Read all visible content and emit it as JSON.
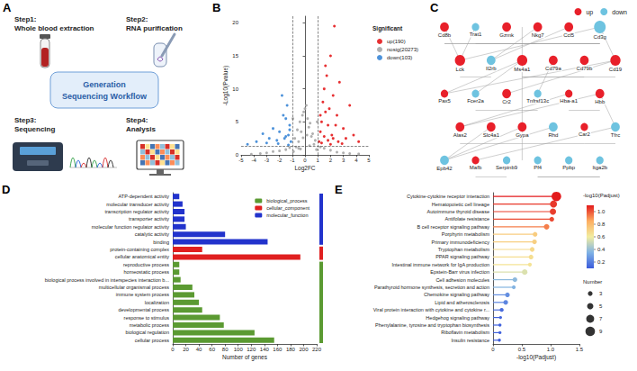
{
  "workflow": {
    "panel": "A",
    "title": "Generation Sequencing Workflow",
    "steps": [
      {
        "step": "Step1:",
        "text": "Whole blood extraction"
      },
      {
        "step": "Step2:",
        "text": "RNA purification"
      },
      {
        "step": "Step3:",
        "text": "Sequencing"
      },
      {
        "step": "Step4:",
        "text": "Analysis"
      }
    ]
  },
  "network": {
    "panel": "C",
    "legend": [
      {
        "name": "up",
        "color": "#e8202a"
      },
      {
        "name": "down",
        "color": "#6ec3e0"
      }
    ],
    "nodes": [
      {
        "label": "Cd8b",
        "group": "up"
      },
      {
        "label": "Trat1",
        "group": "down"
      },
      {
        "label": "Gzmk",
        "group": "up"
      },
      {
        "label": "Nkg7",
        "group": "up"
      },
      {
        "label": "Ccl5",
        "group": "up"
      },
      {
        "label": "Cd3g",
        "group": "down"
      },
      {
        "label": "Lck",
        "group": "up"
      },
      {
        "label": "Il2rb",
        "group": "down"
      },
      {
        "label": "Ms4a1",
        "group": "up"
      },
      {
        "label": "Cd79a",
        "group": "up"
      },
      {
        "label": "Cd79b",
        "group": "up"
      },
      {
        "label": "Cd19",
        "group": "up"
      },
      {
        "label": "Pax5",
        "group": "up"
      },
      {
        "label": "Fcer2a",
        "group": "down"
      },
      {
        "label": "Cr2",
        "group": "up"
      },
      {
        "label": "Tnfrsf13c",
        "group": "down"
      },
      {
        "label": "Hba-a1",
        "group": "up"
      },
      {
        "label": "Hbb",
        "group": "up"
      },
      {
        "label": "Alas2",
        "group": "up"
      },
      {
        "label": "Slc4a1",
        "group": "up"
      },
      {
        "label": "Gypa",
        "group": "up"
      },
      {
        "label": "Rhd",
        "group": "down"
      },
      {
        "label": "Car2",
        "group": "up"
      },
      {
        "label": "Tfrc",
        "group": "down"
      },
      {
        "label": "Epb42",
        "group": "down"
      },
      {
        "label": "Mafb",
        "group": "up"
      },
      {
        "label": "Serpinb9",
        "group": "down"
      },
      {
        "label": "Pf4",
        "group": "down"
      },
      {
        "label": "Ppbp",
        "group": "down"
      },
      {
        "label": "Itga2b",
        "group": "down"
      }
    ],
    "links": [
      [
        "Cd8b",
        "Lck"
      ],
      [
        "Cd8b",
        "Cd3g"
      ],
      [
        "Cd8b",
        "Gzmk"
      ],
      [
        "Trat1",
        "Lck"
      ],
      [
        "Trat1",
        "Cd3g"
      ],
      [
        "Gzmk",
        "Nkg7"
      ],
      [
        "Nkg7",
        "Ccl5"
      ],
      [
        "Ccl5",
        "Cd3g"
      ],
      [
        "Cd3g",
        "Lck"
      ],
      [
        "Lck",
        "Il2rb"
      ],
      [
        "Il2rb",
        "Nkg7"
      ],
      [
        "Ms4a1",
        "Cd79a"
      ],
      [
        "Ms4a1",
        "Cd79b"
      ],
      [
        "Cd79a",
        "Cd79b"
      ],
      [
        "Cd79b",
        "Cd19"
      ],
      [
        "Cd19",
        "Pax5"
      ],
      [
        "Pax5",
        "Ms4a1"
      ],
      [
        "Fcer2a",
        "Cr2"
      ],
      [
        "Cr2",
        "Cd19"
      ],
      [
        "Tnfrsf13c",
        "Cd79a"
      ],
      [
        "Tnfrsf13c",
        "Cr2"
      ],
      [
        "Fcer2a",
        "Ms4a1"
      ],
      [
        "Hba-a1",
        "Hbb"
      ],
      [
        "Hbb",
        "Alas2"
      ],
      [
        "Alas2",
        "Slc4a1"
      ],
      [
        "Slc4a1",
        "Gypa"
      ],
      [
        "Gypa",
        "Rhd"
      ],
      [
        "Rhd",
        "Car2"
      ],
      [
        "Car2",
        "Tfrc"
      ],
      [
        "Tfrc",
        "Hbb"
      ],
      [
        "Epb42",
        "Slc4a1"
      ],
      [
        "Epb42",
        "Gypa"
      ],
      [
        "Hba-a1",
        "Alas2"
      ],
      [
        "Mafb",
        "Serpinb9"
      ],
      [
        "Serpinb9",
        "Gzmk"
      ],
      [
        "Pf4",
        "Ppbp"
      ],
      [
        "Ppbp",
        "Itga2b"
      ],
      [
        "Itga2b",
        "Pf4"
      ],
      [
        "Mafb",
        "Tfrc"
      ],
      [
        "Cd3g",
        "Cd19"
      ],
      [
        "Il2rb",
        "Ccl5"
      ],
      [
        "Rhd",
        "Epb42"
      ]
    ]
  },
  "chart_data": [
    {
      "panel": "B",
      "type": "scatter",
      "xlabel": "Log2FC",
      "ylabel": "-Log10(Pvalue)",
      "xlim": [
        -5,
        5
      ],
      "xticks": [
        -5,
        -4,
        -3,
        -2,
        -1,
        0,
        1,
        2,
        3,
        4,
        5
      ],
      "ylim": [
        0,
        21
      ],
      "yticks": [
        0,
        5,
        10,
        15,
        20
      ],
      "grid": false,
      "legend": "right",
      "legend_title": "Significant",
      "thresholds": {
        "x": [
          -1,
          1
        ],
        "y": 1.3
      },
      "series": [
        {
          "name": "up(190)",
          "color": "#e41a1c",
          "marker": "circle",
          "x": [
            1.1,
            1.2,
            1.3,
            1.4,
            1.5,
            1.6,
            1.7,
            1.8,
            1.9,
            2.0,
            2.1,
            2.2,
            2.3,
            2.5,
            2.7,
            3.0,
            3.2,
            3.5,
            3.8,
            4.2,
            1.3,
            1.5,
            1.8,
            2.0,
            2.4,
            2.6,
            1.2,
            1.6,
            2.2,
            2.9
          ],
          "values": [
            2.0,
            3.5,
            5.0,
            8.0,
            10.0,
            6.5,
            12.0,
            4.5,
            7.0,
            15.0,
            3.0,
            9.0,
            19.5,
            6.0,
            11.0,
            4.0,
            2.5,
            7.5,
            3.0,
            2.0,
            1.8,
            2.8,
            2.2,
            1.6,
            4.5,
            2.0,
            6.0,
            13.5,
            2.5,
            1.7
          ]
        },
        {
          "name": "nosig(20273)",
          "color": "#a6a6a6",
          "marker": "circle",
          "x": [
            -0.9,
            -0.7,
            -0.5,
            -0.3,
            -0.1,
            0.1,
            0.3,
            0.5,
            0.7,
            0.9,
            -0.8,
            -0.6,
            -0.4,
            -0.2,
            0,
            0.2,
            0.4,
            0.6,
            0.8,
            -0.5,
            -1.5,
            -2,
            -2.5,
            -3,
            1.5,
            2,
            2.5,
            3,
            -3.5,
            3.5,
            -4.2,
            4.2,
            -1.2,
            1.2,
            -0.95,
            0.95,
            0.15,
            -0.15,
            0.35,
            -0.35
          ],
          "values": [
            0.5,
            1.2,
            2.0,
            3.5,
            6.5,
            7.5,
            4.2,
            2.8,
            1.6,
            0.8,
            2.5,
            3.8,
            5.0,
            6.0,
            7.0,
            5.5,
            4.8,
            3.2,
            2.2,
            1.0,
            0.8,
            0.6,
            0.5,
            0.3,
            1.0,
            0.7,
            0.4,
            0.3,
            0.2,
            0.2,
            0.1,
            0.15,
            1.1,
            1.2,
            5.5,
            5.0,
            3.0,
            2.6,
            1.4,
            0.9
          ]
        },
        {
          "name": "down(103)",
          "color": "#3a86d6",
          "marker": "circle",
          "x": [
            -1.1,
            -1.2,
            -1.3,
            -1.4,
            -1.5,
            -1.6,
            -1.8,
            -2.0,
            -2.2,
            -2.5,
            -2.8,
            -3.0,
            -3.3,
            -3.8,
            -4.5,
            -1.3,
            -1.7,
            -2.1,
            -1.2,
            -1.5
          ],
          "values": [
            2.0,
            4.5,
            3.0,
            7.5,
            5.5,
            2.5,
            9.0,
            3.5,
            2.2,
            4.0,
            2.5,
            1.8,
            3.2,
            2.0,
            1.6,
            1.5,
            6.0,
            1.7,
            3.8,
            2.8
          ]
        }
      ]
    },
    {
      "panel": "D",
      "type": "bar",
      "orientation": "horizontal",
      "xlabel": "Number of genes",
      "xlim": [
        0,
        220
      ],
      "xticks": [
        0,
        20,
        40,
        60,
        80,
        100,
        120,
        140,
        160,
        180,
        200,
        220
      ],
      "grid": false,
      "legend": "upper right",
      "categories": [
        "ATP-dependent activity",
        "molecular transducer activity",
        "transcription regulator activity",
        "transporter activity",
        "molecular function regulator activity",
        "catalytic activity",
        "binding",
        "protein-containing complex",
        "cellular anatomical entity",
        "reproductive process",
        "homeostatic process",
        "biological process involved in interspecies interaction b...",
        "multicellular organismal process",
        "immune system process",
        "localization",
        "developmental process",
        "response to stimulus",
        "metabolic process",
        "biological regulation",
        "cellular process"
      ],
      "series": [
        {
          "name": "biological_process",
          "color": "#5b9a32",
          "values": [
            null,
            null,
            null,
            null,
            null,
            null,
            null,
            null,
            null,
            10,
            10,
            12,
            30,
            33,
            40,
            45,
            72,
            78,
            125,
            155
          ]
        },
        {
          "name": "cellular_component",
          "color": "#e02020",
          "values": [
            null,
            null,
            null,
            null,
            null,
            null,
            null,
            45,
            195,
            null,
            null,
            null,
            null,
            null,
            null,
            null,
            null,
            null,
            null,
            null
          ]
        },
        {
          "name": "molecular_function",
          "color": "#2233cc",
          "values": [
            10,
            15,
            18,
            18,
            20,
            80,
            145,
            null,
            null,
            null,
            null,
            null,
            null,
            null,
            null,
            null,
            null,
            null,
            null,
            null
          ]
        }
      ]
    },
    {
      "panel": "E",
      "type": "lollipop",
      "xlabel": "-log10(Padjust)",
      "xlim": [
        0,
        1.5
      ],
      "xticks": [
        0,
        0.5,
        {
          "value": 1,
          "label": "1.0"
        },
        1.5
      ],
      "grid": false,
      "categories": [
        "Cytokine-cytokine receptor interaction",
        "Hematopoietic cell lineage",
        "Autoimmune thyroid disease",
        "Antifolate resistance",
        "B cell receptor signaling pathway",
        "Porphyrin metabolism",
        "Primary immunodeficiency",
        "Tryptophan metabolism",
        "PPAR signaling pathway",
        "Intestinal immune network for IgA production",
        "Epstein-Barr virus infection",
        "Cell adhesion molecules",
        "Parathyroid hormone synthesis, secretion and action",
        "Chemokine signaling pathway",
        "Lipid and atherosclerosis",
        "Viral protein interaction with cytokine and cytokine r...",
        "Hedgehog signaling pathway",
        "Phenylalanine, tyrosine and tryptophan biosynthesis",
        "Riboflavin metabolism",
        "Insulin resistance"
      ],
      "values": [
        1.1,
        1.05,
        1.04,
        1.02,
        0.93,
        0.73,
        0.72,
        0.68,
        0.66,
        0.64,
        0.55,
        0.38,
        0.36,
        0.25,
        0.22,
        0.15,
        0.13,
        0.12,
        0.12,
        0.11
      ],
      "number": [
        9,
        6,
        5,
        3,
        4,
        3,
        3,
        3,
        3,
        2,
        4,
        3,
        2,
        3,
        3,
        2,
        1,
        1,
        1,
        1
      ],
      "colorbar": {
        "title": "-log10(Padjust)",
        "range": [
          0.1,
          1.1
        ],
        "ticks": [
          0.2,
          0.4,
          0.6,
          0.8,
          {
            "value": 1,
            "label": "1.0"
          }
        ]
      },
      "size_legend": {
        "title": "Number",
        "values": [
          3,
          5,
          7,
          9
        ]
      }
    }
  ]
}
